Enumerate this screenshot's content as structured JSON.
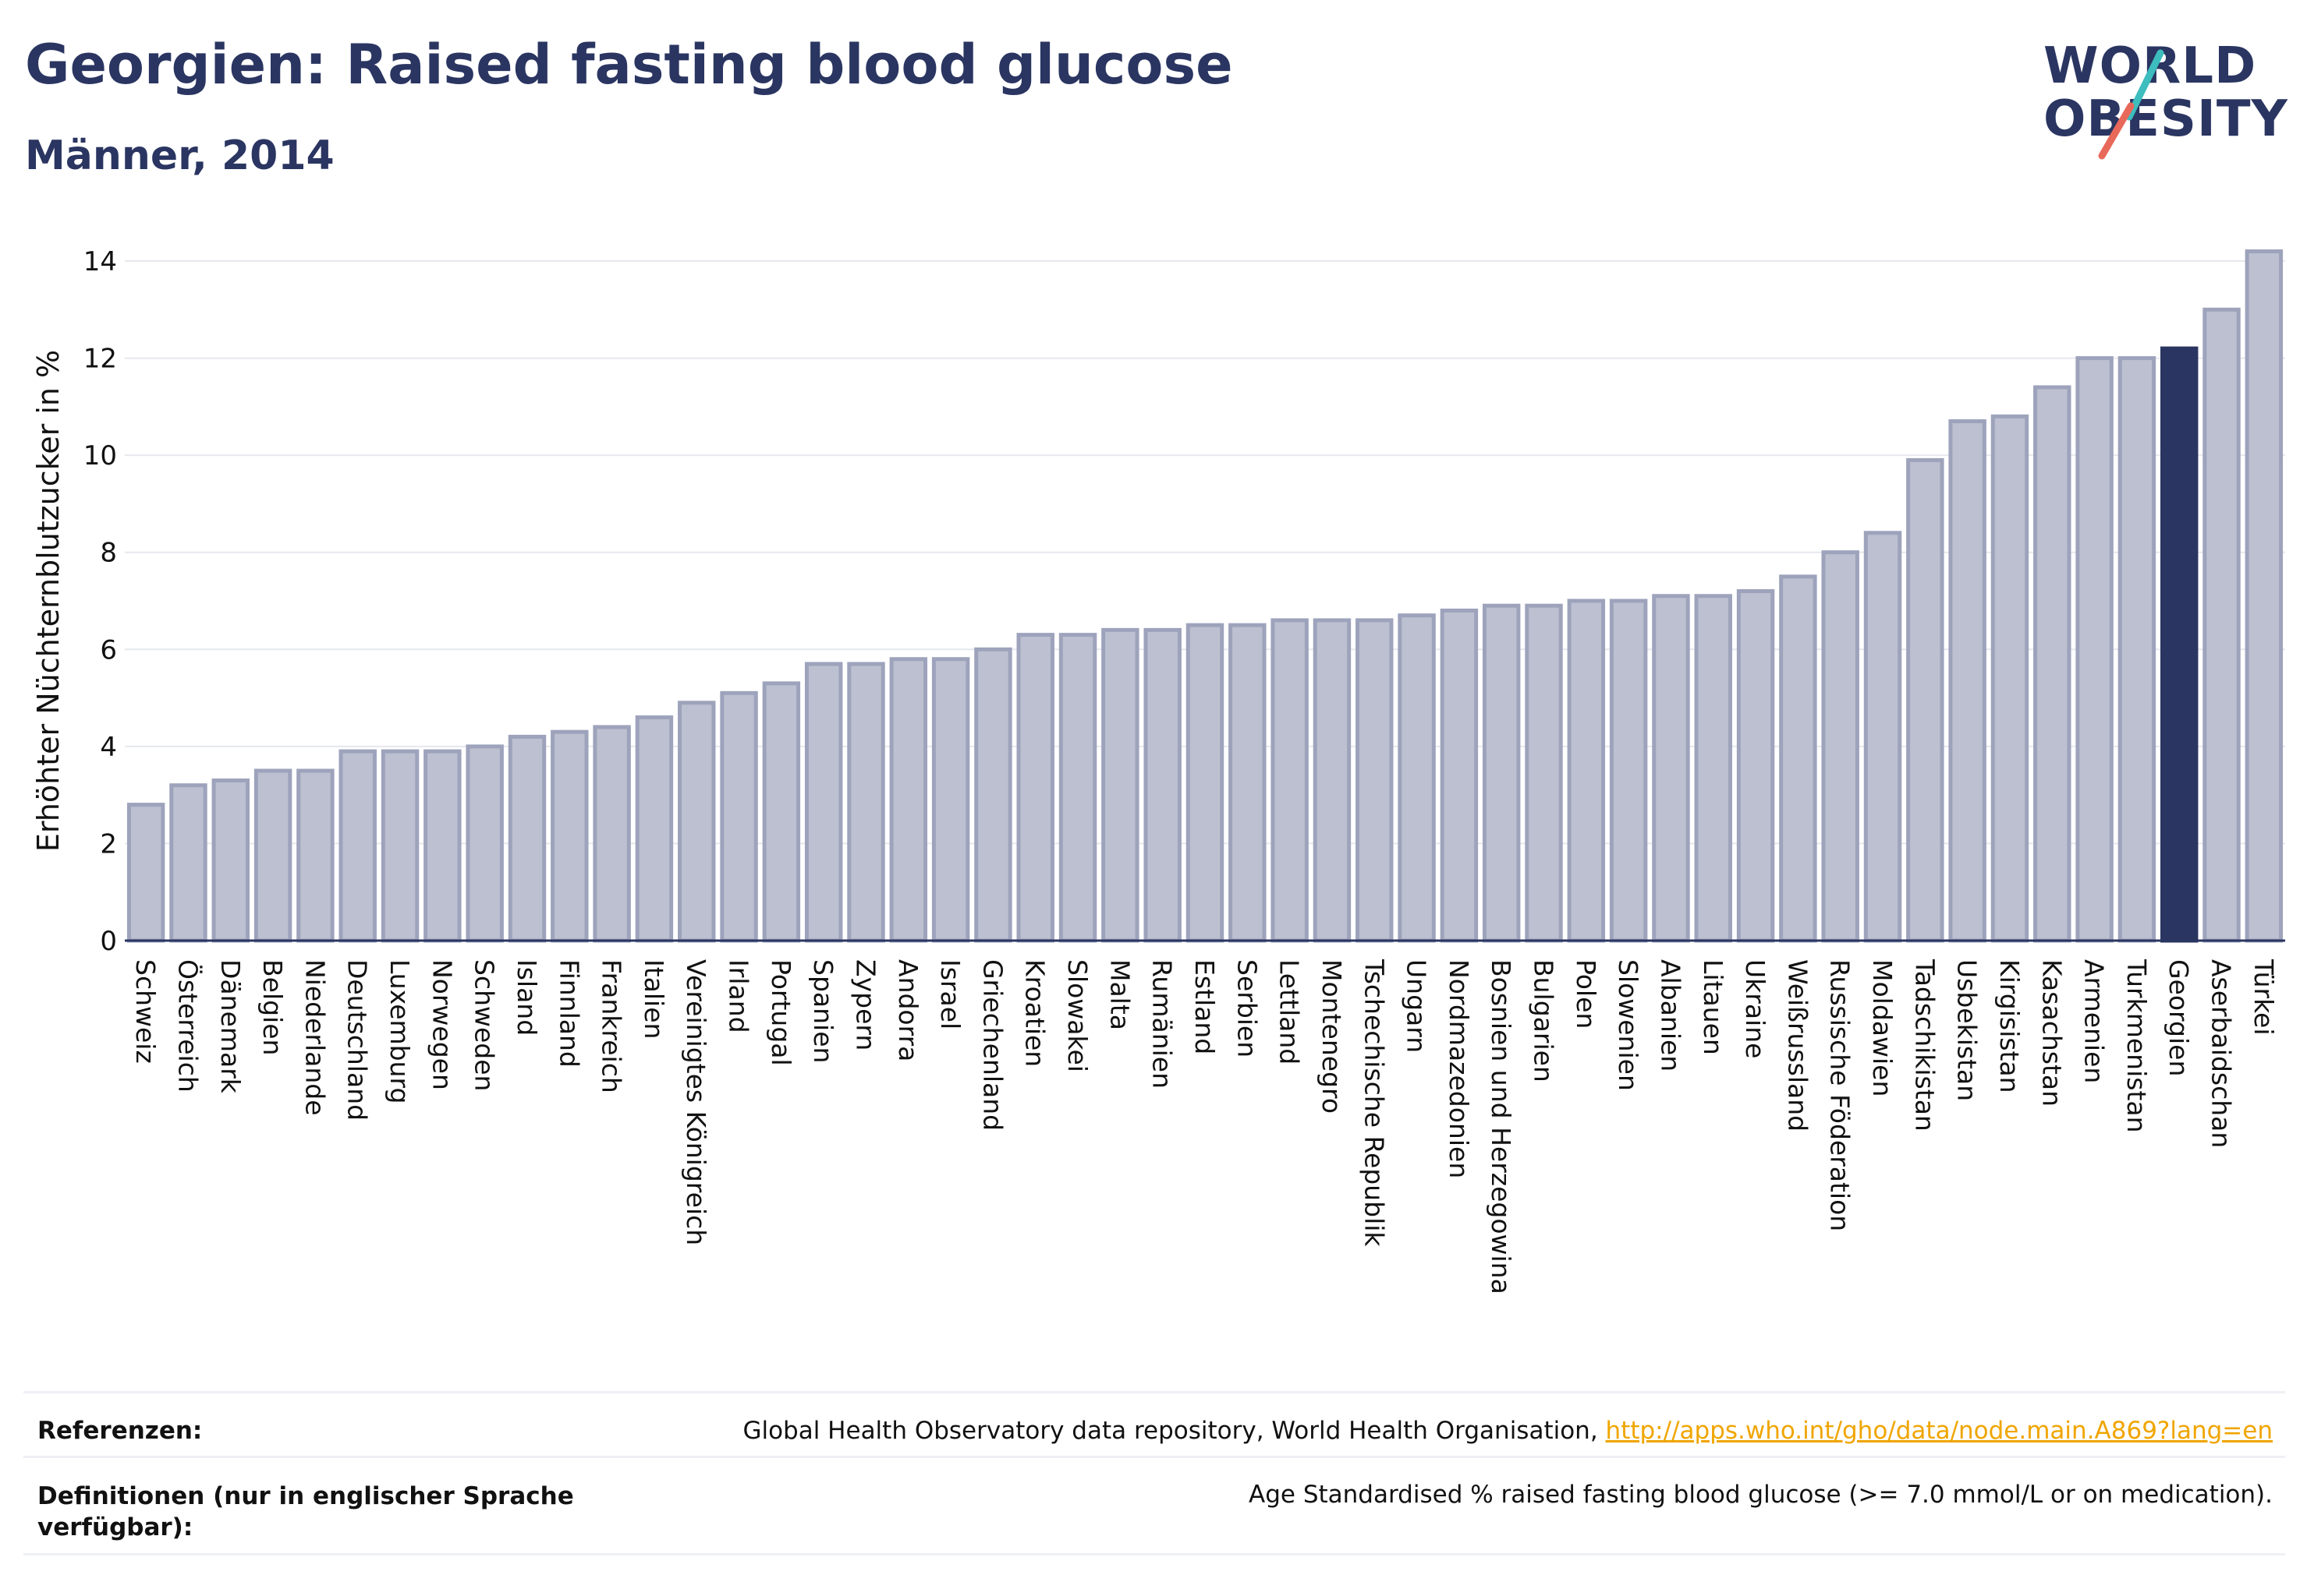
{
  "header": {
    "title": "Georgien: Raised fasting blood glucose",
    "subtitle": "Männer, 2014"
  },
  "logo": {
    "line1": "WORLD",
    "line2": "OBESITY",
    "colors": {
      "text": "#2a3561",
      "slash_top": "#3dbdbd",
      "slash_bottom": "#e8695a"
    }
  },
  "chart_data": {
    "type": "bar",
    "ylabel": "Erhöhter Nüchternblutzucker in %",
    "xlabel": "",
    "ylim": [
      0,
      14.5
    ],
    "yticks": [
      0,
      2,
      4,
      6,
      8,
      10,
      12,
      14
    ],
    "grid": true,
    "highlight": "Georgien",
    "colors": {
      "bar": "#bcc0d0",
      "bar_edge": "#9ea3bc",
      "highlight": "#2a3561"
    },
    "categories": [
      "Schweiz",
      "Österreich",
      "Dänemark",
      "Belgien",
      "Niederlande",
      "Deutschland",
      "Luxemburg",
      "Norwegen",
      "Schweden",
      "Island",
      "Finnland",
      "Frankreich",
      "Italien",
      "Vereinigtes Königreich",
      "Irland",
      "Portugal",
      "Spanien",
      "Zypern",
      "Andorra",
      "Israel",
      "Griechenland",
      "Kroatien",
      "Slowakei",
      "Malta",
      "Rumänien",
      "Estland",
      "Serbien",
      "Lettland",
      "Montenegro",
      "Tschechische Republik",
      "Ungarn",
      "Nordmazedonien",
      "Bosnien und Herzegowina",
      "Bulgarien",
      "Polen",
      "Slowenien",
      "Albanien",
      "Litauen",
      "Ukraine",
      "Weißrussland",
      "Russische Föderation",
      "Moldawien",
      "Tadschikistan",
      "Usbekistan",
      "Kirgisistan",
      "Kasachstan",
      "Armenien",
      "Turkmenistan",
      "Georgien",
      "Aserbaidschan",
      "Türkei"
    ],
    "values": [
      2.8,
      3.2,
      3.3,
      3.5,
      3.5,
      3.9,
      3.9,
      3.9,
      4.0,
      4.2,
      4.3,
      4.4,
      4.6,
      4.9,
      5.1,
      5.3,
      5.7,
      5.7,
      5.8,
      5.8,
      6.0,
      6.3,
      6.3,
      6.4,
      6.4,
      6.5,
      6.5,
      6.6,
      6.6,
      6.6,
      6.7,
      6.8,
      6.9,
      6.9,
      7.0,
      7.0,
      7.1,
      7.1,
      7.2,
      7.5,
      8.0,
      8.4,
      9.9,
      10.7,
      10.8,
      11.4,
      12.0,
      12.0,
      12.2,
      13.0,
      14.2
    ]
  },
  "footer": {
    "references_label": "Referenzen:",
    "references_text": "Global Health Observatory data repository, World Health Organisation, ",
    "references_link": "http://apps.who.int/gho/data/node.main.A869?lang=en",
    "definitions_label": "Definitionen (nur in englischer Sprache verfügbar):",
    "definitions_text": "Age Standardised % raised fasting blood glucose (>= 7.0 mmol/L or on medication)."
  }
}
